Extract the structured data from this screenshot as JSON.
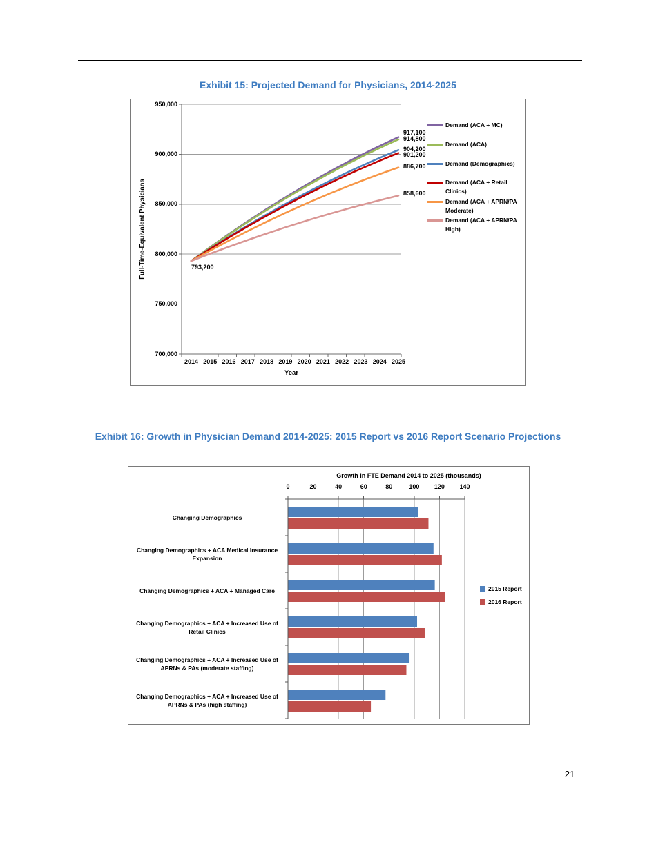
{
  "page": {
    "number": "21"
  },
  "colors": {
    "heading": "#3E7CC1",
    "gridline": "#9C9C9C",
    "axis": "#6E6E6E",
    "dark_axis": "#595959"
  },
  "exhibit15": {
    "title": "Exhibit 15: Projected Demand for Physicians, 2014-2025",
    "chart_data": {
      "type": "line",
      "xlabel": "Year",
      "ylabel": "Full-Time-Equivalent Physicians",
      "x": [
        "2014",
        "2015",
        "2016",
        "2017",
        "2018",
        "2019",
        "2020",
        "2021",
        "2022",
        "2023",
        "2024",
        "2025"
      ],
      "ylim": [
        700000,
        950000
      ],
      "yticks": [
        {
          "value": 950000,
          "label": "950,000"
        },
        {
          "value": 900000,
          "label": "900,000"
        },
        {
          "value": 850000,
          "label": "850,000"
        },
        {
          "value": 800000,
          "label": "800,000"
        },
        {
          "value": 750000,
          "label": "750,000"
        },
        {
          "value": 700000,
          "label": "700,000"
        }
      ],
      "grid": true,
      "legend_position": "right",
      "start_value": 793200,
      "start_label": "793,200",
      "series": [
        {
          "name": "Demand (ACA + MC)",
          "name_lines": [
            "Demand (ACA + MC)"
          ],
          "color": "#8064A2",
          "value_2014": 793200,
          "value_2025": 917100,
          "end_label": "917,100"
        },
        {
          "name": "Demand (ACA)",
          "name_lines": [
            "Demand (ACA)"
          ],
          "color": "#9BBB59",
          "value_2014": 793200,
          "value_2025": 914800,
          "end_label": "914,800"
        },
        {
          "name": "Demand (Demographics)",
          "name_lines": [
            "Demand (Demographics)"
          ],
          "color": "#4F81BD",
          "value_2014": 793200,
          "value_2025": 904200,
          "end_label": "904,200"
        },
        {
          "name": "Demand (ACA + Retail Clinics)",
          "name_lines": [
            "Demand (ACA + Retail",
            "Clinics)"
          ],
          "color": "#C00000",
          "value_2014": 793200,
          "value_2025": 901200,
          "end_label": "901,200"
        },
        {
          "name": "Demand (ACA + APRN/PA Moderate)",
          "name_lines": [
            "Demand (ACA + APRN/PA",
            "Moderate)"
          ],
          "color": "#F79646",
          "value_2014": 793200,
          "value_2025": 886700,
          "end_label": "886,700"
        },
        {
          "name": "Demand (ACA + APRN/PA High)",
          "name_lines": [
            "Demand (ACA + APRN/PA",
            "High)"
          ],
          "color": "#D99694",
          "value_2014": 793200,
          "value_2025": 858600,
          "end_label": "858,600"
        }
      ]
    }
  },
  "exhibit16": {
    "title": "Exhibit 16: Growth in Physician Demand 2014-2025: 2015 Report vs 2016 Report Scenario Projections",
    "chart_data": {
      "type": "bar",
      "orientation": "horizontal",
      "axis_title": "Growth in FTE Demand 2014 to 2025 (thousands)",
      "xlim": [
        0,
        140
      ],
      "xticks": [
        0,
        20,
        40,
        60,
        80,
        100,
        120,
        140
      ],
      "grid": true,
      "legend_position": "right",
      "categories": [
        {
          "lines": [
            "Changing Demographics"
          ]
        },
        {
          "lines": [
            "Changing Demographics + ACA Medical Insurance",
            "Expansion"
          ]
        },
        {
          "lines": [
            "Changing Demographics + ACA + Managed Care"
          ]
        },
        {
          "lines": [
            "Changing Demographics + ACA + Increased Use of",
            "Retail Clinics"
          ]
        },
        {
          "lines": [
            "Changing Demographics + ACA + Increased Use of",
            "APRNs & PAs (moderate staffing)"
          ]
        },
        {
          "lines": [
            "Changing Demographics + ACA + Increased Use of",
            "APRNs & PAs (high staffing)"
          ]
        }
      ],
      "series": [
        {
          "name": "2015 Report",
          "color": "#4F81BD",
          "values": [
            103,
            115,
            116,
            102,
            96,
            77
          ]
        },
        {
          "name": "2016 Report",
          "color": "#C0504D",
          "values": [
            111,
            121.6,
            123.9,
            108,
            93.5,
            65.4
          ]
        }
      ]
    }
  }
}
